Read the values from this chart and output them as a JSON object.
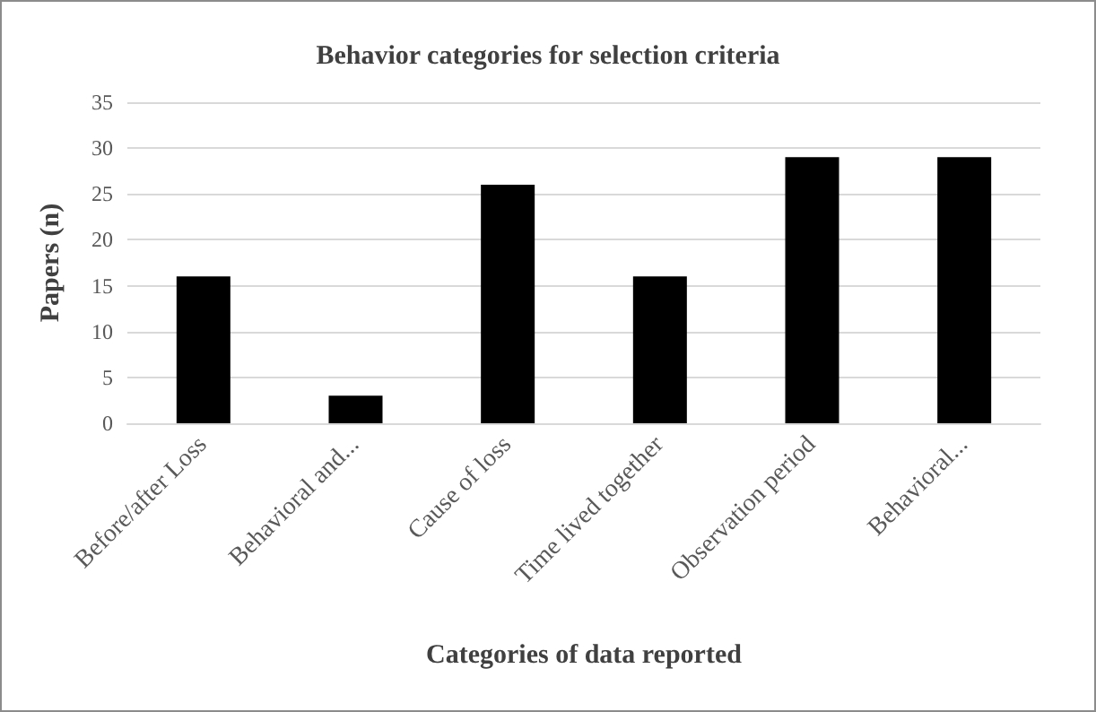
{
  "chart_data": {
    "type": "bar",
    "title": "Behavior categories for selection criteria",
    "xlabel": "Categories of data reported",
    "ylabel": "Papers (n)",
    "categories": [
      "Before/after Loss",
      "Behavioral and...",
      "Cause of loss",
      "Time lived together",
      "Observation period",
      "Behavioral..."
    ],
    "values": [
      16,
      3,
      26,
      16,
      29,
      29
    ],
    "color": "#000000",
    "ylim": [
      0,
      35
    ],
    "yticks": [
      0,
      5,
      10,
      15,
      20,
      25,
      30,
      35
    ],
    "grid": "y"
  }
}
